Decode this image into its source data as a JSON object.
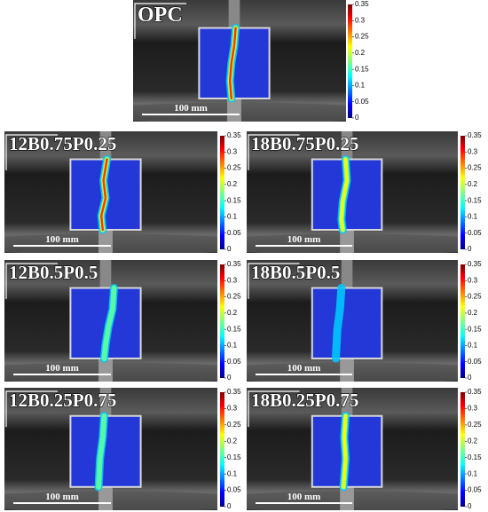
{
  "colorbar": {
    "ticks": [
      0,
      0.05,
      0.1,
      0.15,
      0.2,
      0.25,
      0.3,
      0.35
    ]
  },
  "panels": [
    {
      "label": "OPC",
      "scale_bar": "100 mm"
    },
    {
      "label": "12B0.75P0.25",
      "scale_bar": "100 mm"
    },
    {
      "label": "18B0.75P0.25",
      "scale_bar": "100 mm"
    },
    {
      "label": "12B0.5P0.5",
      "scale_bar": "100 mm"
    },
    {
      "label": "18B0.5P0.5",
      "scale_bar": "100 mm"
    },
    {
      "label": "12B0.25P0.75",
      "scale_bar": "100 mm"
    },
    {
      "label": "18B0.25P0.75",
      "scale_bar": "100 mm"
    }
  ]
}
